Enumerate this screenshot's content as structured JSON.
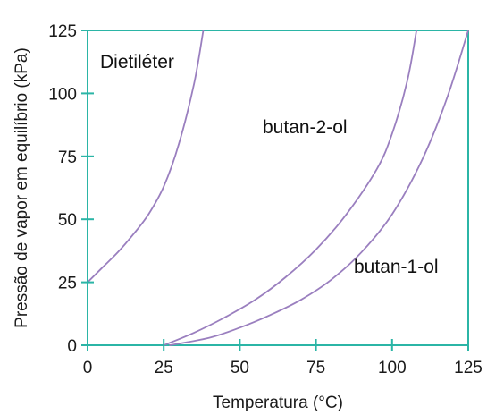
{
  "chart_data": {
    "type": "line",
    "xlabel": "Temperatura (°C)",
    "ylabel": "Pressão de vapor em equilíbrio (kPa)",
    "xlim": [
      0,
      125
    ],
    "ylim": [
      0,
      125
    ],
    "xticks": [
      0,
      25,
      50,
      75,
      100,
      125
    ],
    "yticks": [
      0,
      25,
      50,
      75,
      100,
      125
    ],
    "grid": false,
    "colors": {
      "frame": "#2bb5a6",
      "series": "#9a7fbf",
      "text": "#1a1a1a"
    },
    "series": [
      {
        "name": "Dietiléter",
        "x": [
          0,
          5,
          10,
          15,
          20,
          25,
          30,
          35,
          38
        ],
        "y": [
          25,
          31,
          37,
          44,
          52,
          63,
          80,
          104,
          125
        ]
      },
      {
        "name": "butan-2-ol",
        "x": [
          25,
          35,
          45,
          55,
          65,
          75,
          85,
          95,
          100,
          105,
          108
        ],
        "y": [
          0,
          5,
          11,
          18,
          27,
          38,
          52,
          70,
          84,
          105,
          125
        ]
      },
      {
        "name": "butan-1-ol",
        "x": [
          27,
          40,
          50,
          60,
          70,
          80,
          90,
          100,
          110,
          118,
          125
        ],
        "y": [
          0,
          3,
          7,
          12,
          18,
          26,
          37,
          52,
          74,
          98,
          125
        ]
      }
    ]
  }
}
